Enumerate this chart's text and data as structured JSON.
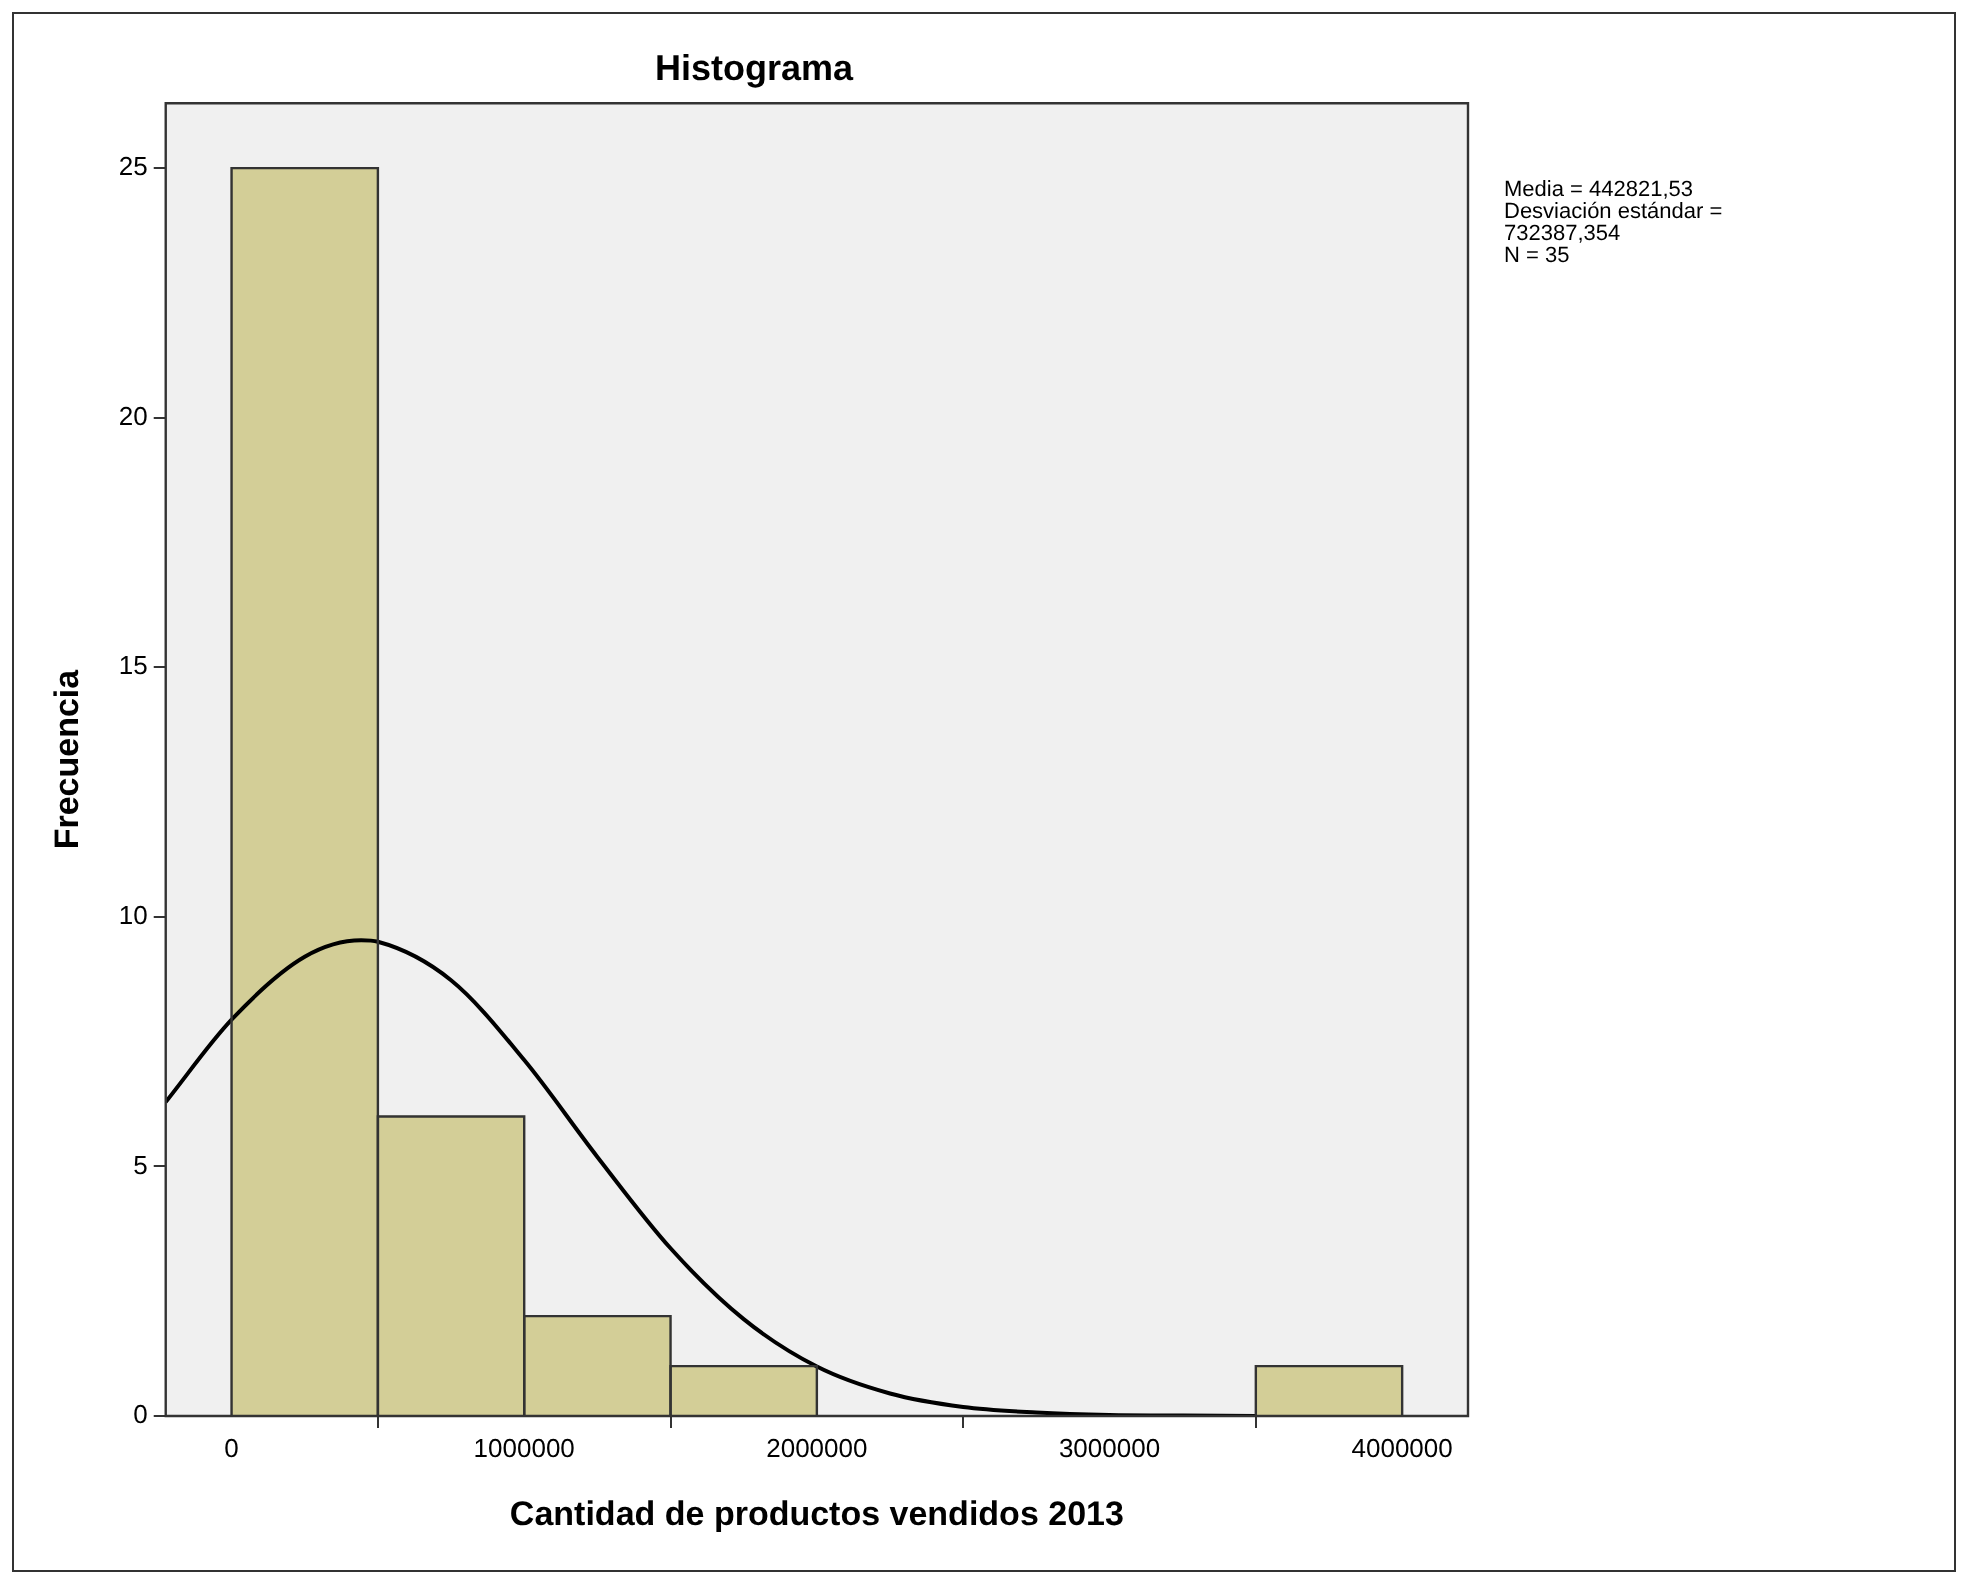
{
  "chart_data": {
    "type": "histogram",
    "title": "Histograma",
    "xlabel": "Cantidad de productos vendidos 2013",
    "ylabel": "Frecuencia",
    "bins": [
      0,
      500000,
      1000000,
      1500000,
      2000000,
      2500000,
      3000000,
      3500000,
      4000000
    ],
    "values": [
      25,
      6,
      2,
      1,
      0,
      0,
      0,
      1
    ],
    "color": "#d3ce97",
    "series": [
      {
        "type": "line",
        "color": "#000000",
        "x": [
          -225000,
          0,
          250000,
          442821,
          500000,
          750000,
          1000000,
          1250000,
          1500000,
          1750000,
          2000000,
          2250000,
          2500000,
          2750000,
          3000000,
          3250000,
          3500000
        ],
        "values": [
          6.29,
          7.94,
          9.2,
          9.53,
          9.5,
          8.73,
          7.13,
          5.19,
          3.36,
          1.94,
          0.99,
          0.45,
          0.18,
          0.07,
          0.02,
          0.01,
          0
        ]
      }
    ],
    "xlim": [
      -225000,
      4225000
    ],
    "xticks": [
      0,
      1000000,
      2000000,
      3000000,
      4000000
    ],
    "ylim": [
      0,
      26.3
    ],
    "yticks": [
      0,
      5,
      10,
      15,
      20,
      25
    ],
    "grid": false,
    "legend": false,
    "marker": "none",
    "annotations": [
      "Media = 442821,53",
      "Desviación estándar = 732387,354",
      "N = 35"
    ]
  }
}
